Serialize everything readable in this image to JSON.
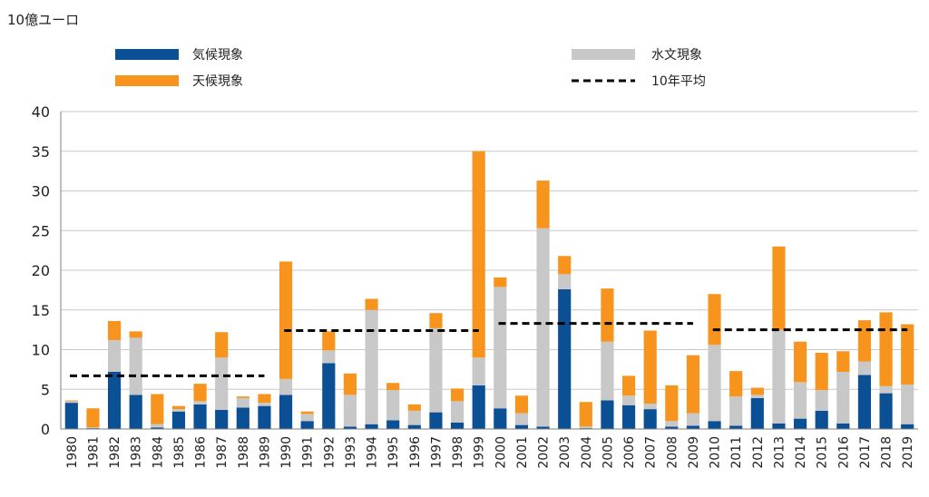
{
  "chart_data": {
    "type": "bar",
    "stacked": true,
    "unit_label": "10億ユーロ",
    "ylim": [
      0,
      40
    ],
    "yticks": [
      0,
      5,
      10,
      15,
      20,
      25,
      30,
      35,
      40
    ],
    "grid": true,
    "categories": [
      "1980",
      "1981",
      "1982",
      "1983",
      "1984",
      "1985",
      "1986",
      "1987",
      "1988",
      "1989",
      "1990",
      "1991",
      "1992",
      "1993",
      "1994",
      "1995",
      "1996",
      "1997",
      "1998",
      "1999",
      "2000",
      "2001",
      "2002",
      "2003",
      "2004",
      "2005",
      "2006",
      "2007",
      "2008",
      "2009",
      "2010",
      "2011",
      "2012",
      "2013",
      "2014",
      "2015",
      "2016",
      "2017",
      "2018",
      "2019"
    ],
    "series": [
      {
        "name": "気候現象",
        "color": "#0b4f95",
        "values": [
          3.3,
          0.1,
          7.2,
          4.3,
          0.2,
          2.2,
          3.1,
          2.4,
          2.7,
          2.9,
          4.3,
          1.0,
          8.3,
          0.3,
          0.6,
          1.1,
          0.5,
          2.1,
          0.8,
          5.5,
          2.6,
          0.5,
          0.3,
          17.6,
          0.1,
          3.6,
          3.0,
          2.5,
          0.3,
          0.4,
          1.0,
          0.4,
          3.9,
          0.7,
          1.3,
          2.3,
          0.7,
          6.8,
          4.5,
          0.6
        ]
      },
      {
        "name": "水文現象",
        "color": "#c8c8c8",
        "values": [
          0.2,
          0.1,
          4.0,
          7.2,
          0.4,
          0.3,
          0.4,
          6.6,
          1.2,
          0.4,
          2.0,
          0.9,
          1.6,
          4.0,
          14.4,
          3.8,
          1.8,
          10.6,
          2.7,
          3.5,
          15.3,
          1.5,
          25.0,
          1.9,
          0.2,
          7.4,
          1.2,
          0.7,
          0.7,
          1.6,
          9.6,
          3.7,
          0.4,
          11.8,
          4.6,
          2.6,
          6.5,
          1.7,
          0.9,
          5.0
        ]
      },
      {
        "name": "天候現象",
        "color": "#f7941d",
        "values": [
          0.1,
          2.4,
          2.4,
          0.8,
          3.8,
          0.4,
          2.2,
          3.2,
          0.2,
          1.1,
          14.8,
          0.3,
          2.4,
          2.7,
          1.4,
          0.9,
          0.8,
          1.9,
          1.6,
          26.0,
          1.2,
          2.2,
          6.0,
          2.3,
          3.1,
          6.7,
          2.5,
          9.2,
          4.5,
          7.3,
          6.4,
          3.2,
          0.9,
          10.5,
          5.1,
          4.7,
          2.6,
          5.2,
          9.3,
          7.6
        ]
      }
    ],
    "ten_year_average": {
      "name": "10年平均",
      "color": "#000000",
      "periods": [
        {
          "from": "1980",
          "to": "1989",
          "value": 6.7
        },
        {
          "from": "1990",
          "to": "1999",
          "value": 12.4
        },
        {
          "from": "2000",
          "to": "2009",
          "value": 13.3
        },
        {
          "from": "2010",
          "to": "2019",
          "value": 12.5
        }
      ]
    },
    "legend": {
      "placement": "top",
      "entries": [
        {
          "label": "気候現象",
          "kind": "bar",
          "color": "#0b4f95"
        },
        {
          "label": "天候現象",
          "kind": "bar",
          "color": "#f7941d"
        },
        {
          "label": "水文現象",
          "kind": "bar",
          "color": "#c8c8c8"
        },
        {
          "label": "10年平均",
          "kind": "dashed-line",
          "color": "#000000"
        }
      ]
    }
  }
}
